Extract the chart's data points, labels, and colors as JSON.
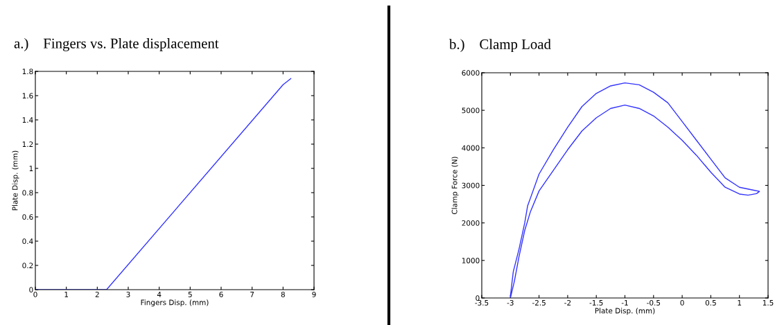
{
  "chart_data": [
    {
      "type": "line",
      "title": "a.)    Fingers vs. Plate displacement",
      "xlabel": "Fingers Disp. (mm)",
      "ylabel": "Plate Disp. (mm)",
      "x": [
        0,
        2.3,
        8.0,
        8.25
      ],
      "series": [
        {
          "color": "#3333ff",
          "values": [
            0,
            0,
            1.69,
            1.74
          ]
        }
      ],
      "xlim": [
        0,
        9
      ],
      "xticks": [
        0,
        1,
        2,
        3,
        4,
        5,
        6,
        7,
        8,
        9
      ],
      "ylim": [
        0,
        1.8
      ],
      "yticks": [
        0,
        0.2,
        0.4,
        0.6,
        0.8,
        1,
        1.2,
        1.4,
        1.6,
        1.8
      ],
      "grid": false
    },
    {
      "type": "line",
      "title": "b.)    Clamp Load",
      "xlabel": "Plate Disp. (mm)",
      "ylabel": "Clamp Force (N)",
      "series": [
        {
          "color": "#3333ff",
          "x": [
            -3,
            -2.95,
            -2.85,
            -2.75,
            -2.7,
            -2.5,
            -2.25,
            -2,
            -1.75,
            -1.5,
            -1.25,
            -1,
            -0.75,
            -0.5,
            -0.25,
            0,
            0.25,
            0.5,
            0.75,
            1.0,
            1.25,
            1.35,
            1.3,
            1.15,
            1.0,
            0.75,
            0.5,
            0.25,
            0,
            -0.25,
            -0.5,
            -0.75,
            -1,
            -1.25,
            -1.5,
            -1.75,
            -2,
            -2.25,
            -2.5,
            -2.65,
            -2.75,
            -2.85,
            -2.93,
            -3
          ],
          "values": [
            50,
            700,
            1300,
            2000,
            2450,
            3300,
            3950,
            4550,
            5100,
            5450,
            5650,
            5730,
            5680,
            5480,
            5200,
            4700,
            4200,
            3700,
            3200,
            2950,
            2870,
            2840,
            2780,
            2740,
            2770,
            2950,
            3350,
            3800,
            4200,
            4550,
            4850,
            5050,
            5140,
            5050,
            4800,
            4450,
            3950,
            3400,
            2850,
            2300,
            1800,
            1100,
            450,
            0
          ]
        }
      ],
      "xlim": [
        -3.5,
        1.5
      ],
      "xticks": [
        -3.5,
        -3,
        -2.5,
        -2,
        -1.5,
        -1,
        -0.5,
        0,
        0.5,
        1,
        1.5
      ],
      "ylim": [
        0,
        6000
      ],
      "yticks": [
        0,
        1000,
        2000,
        3000,
        4000,
        5000,
        6000
      ],
      "grid": false
    }
  ]
}
